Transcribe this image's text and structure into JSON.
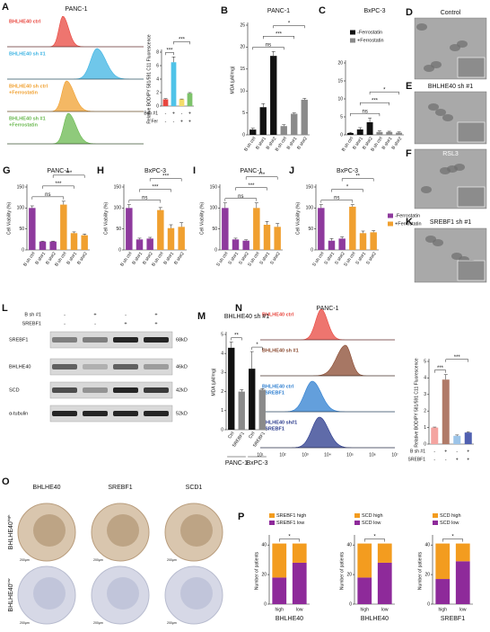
{
  "chart_data": [
    {
      "type": "bar",
      "ylabel": "Relative BODIPY 581/591 C11 Fluorescence",
      "ylim": [
        0,
        8
      ],
      "yticks": [
        0,
        2,
        4,
        6,
        8
      ],
      "values": [
        1,
        6.5,
        1,
        1.9
      ],
      "errors": [
        0.1,
        0.8,
        0.05,
        0.1
      ],
      "colors": [
        "#e8473f",
        "#4fc3e8",
        "#f4dc6a",
        "#7dc36b"
      ],
      "rows": [
        {
          "label": "Bsh #1",
          "marks": [
            "-",
            "+",
            "-",
            "+"
          ]
        },
        {
          "label": "Fer",
          "marks": [
            "-",
            "-",
            "+",
            "+"
          ]
        }
      ],
      "annotations": [
        {
          "text": "***",
          "from": 0,
          "to": 1
        },
        {
          "text": "***",
          "from": 1,
          "to": 3
        }
      ]
    },
    {
      "type": "bar",
      "panel": "B",
      "title": "PANC-1",
      "ylabel": "MDA (μM/mg)",
      "ylim": [
        0,
        25
      ],
      "yticks": [
        0,
        5,
        10,
        15,
        20,
        25
      ],
      "categories": [
        "B sh ctrl",
        "B sh#1",
        "B sh#2",
        "B sh ctrl",
        "B sh#1",
        "B sh#2"
      ],
      "values": [
        1.2,
        6.3,
        18,
        2,
        4.8,
        8
      ],
      "errors": [
        0.3,
        0.8,
        1,
        0.3,
        0.2,
        0.3
      ],
      "colors": [
        "#111111",
        "#111111",
        "#111111",
        "#8a8a8a",
        "#8a8a8a",
        "#8a8a8a"
      ],
      "annotations": [
        {
          "text": "ns",
          "from": 0,
          "to": 3
        },
        {
          "text": "***",
          "from": 1,
          "to": 4
        },
        {
          "text": "*",
          "from": 2,
          "to": 5
        }
      ]
    },
    {
      "type": "bar",
      "panel": "C",
      "title": "BxPC-3",
      "ylim": [
        0,
        20
      ],
      "yticks": [
        0,
        5,
        10,
        15,
        20
      ],
      "categories": [
        "B sh ctrl",
        "B sh#1",
        "B sh#2",
        "B sh ctrl",
        "B sh#1",
        "B sh#2"
      ],
      "values": [
        0.5,
        1.5,
        3.5,
        0.8,
        0.8,
        0.6
      ],
      "errors": [
        0.2,
        0.5,
        1.2,
        0.3,
        0.2,
        0.2
      ],
      "colors": [
        "#111111",
        "#111111",
        "#111111",
        "#8a8a8a",
        "#8a8a8a",
        "#8a8a8a"
      ],
      "legend": [
        {
          "name": "-Ferrostatin",
          "color": "#111111"
        },
        {
          "name": "+Ferrostatin",
          "color": "#8a8a8a"
        }
      ],
      "annotations": [
        {
          "text": "ns",
          "from": 0,
          "to": 3
        },
        {
          "text": "***",
          "from": 1,
          "to": 4
        },
        {
          "text": "*",
          "from": 2,
          "to": 5
        }
      ]
    },
    {
      "type": "bar",
      "panel": "G",
      "title": "PANC-1",
      "ylabel": "Cell Viability (%)",
      "ylim": [
        0,
        150
      ],
      "yticks": [
        0,
        50,
        100,
        150
      ],
      "categories": [
        "B sh ctrl",
        "B sh#1",
        "B sh#2",
        "B sh ctrl",
        "B sh#1",
        "B sh#2"
      ],
      "values": [
        100,
        20,
        20,
        108,
        40,
        35
      ],
      "errors": [
        5,
        1,
        1,
        8,
        3,
        3
      ],
      "colors": [
        "#8e3a9d",
        "#8e3a9d",
        "#8e3a9d",
        "#f0a030",
        "#f0a030",
        "#f0a030"
      ],
      "annotations": [
        {
          "text": "ns",
          "from": 0,
          "to": 3
        },
        {
          "text": "***",
          "from": 1,
          "to": 4
        },
        {
          "text": "***",
          "from": 2,
          "to": 5
        }
      ]
    },
    {
      "type": "bar",
      "panel": "H",
      "title": "BxPC-3",
      "ylabel": "Cell Viability (%)",
      "ylim": [
        0,
        150
      ],
      "yticks": [
        0,
        50,
        100,
        150
      ],
      "categories": [
        "B sh ctrl",
        "B sh#1",
        "B sh#2",
        "B sh ctrl",
        "B sh#1",
        "B sh#2"
      ],
      "values": [
        100,
        25,
        27,
        95,
        52,
        55
      ],
      "errors": [
        8,
        3,
        3,
        6,
        8,
        10
      ],
      "colors": [
        "#8e3a9d",
        "#8e3a9d",
        "#8e3a9d",
        "#f0a030",
        "#f0a030",
        "#f0a030"
      ],
      "annotations": [
        {
          "text": "ns",
          "from": 0,
          "to": 3
        },
        {
          "text": "***",
          "from": 1,
          "to": 4
        },
        {
          "text": "***",
          "from": 2,
          "to": 5
        }
      ]
    },
    {
      "type": "bar",
      "panel": "I",
      "title": "PANC-1",
      "ylabel": "Cell Viability (%)",
      "ylim": [
        0,
        150
      ],
      "yticks": [
        0,
        50,
        100,
        150
      ],
      "categories": [
        "S sh ctrl",
        "S sh#1",
        "S sh#2",
        "S sh ctrl",
        "S sh#1",
        "S sh#2"
      ],
      "values": [
        100,
        25,
        22,
        100,
        60,
        55
      ],
      "errors": [
        12,
        3,
        2,
        12,
        8,
        8
      ],
      "colors": [
        "#8e3a9d",
        "#8e3a9d",
        "#8e3a9d",
        "#f0a030",
        "#f0a030",
        "#f0a030"
      ],
      "annotations": [
        {
          "text": "ns",
          "from": 0,
          "to": 3
        },
        {
          "text": "***",
          "from": 1,
          "to": 4
        },
        {
          "text": "***",
          "from": 2,
          "to": 5
        }
      ]
    },
    {
      "type": "bar",
      "panel": "J",
      "title": "BxPC-3",
      "ylabel": "Cell Viability (%)",
      "ylim": [
        0,
        150
      ],
      "yticks": [
        0,
        50,
        100,
        150
      ],
      "categories": [
        "S sh ctrl",
        "S sh#1",
        "S sh#2",
        "S sh ctrl",
        "S sh#1",
        "S sh#2"
      ],
      "values": [
        100,
        22,
        27,
        103,
        40,
        42
      ],
      "errors": [
        8,
        5,
        4,
        5,
        5,
        4
      ],
      "colors": [
        "#8e3a9d",
        "#8e3a9d",
        "#8e3a9d",
        "#f0a030",
        "#f0a030",
        "#f0a030"
      ],
      "legend": [
        {
          "name": "-Ferrostatin",
          "color": "#8e3a9d"
        },
        {
          "name": "+Ferrostatin",
          "color": "#f0a030"
        }
      ],
      "annotations": [
        {
          "text": "ns",
          "from": 0,
          "to": 3
        },
        {
          "text": "*",
          "from": 1,
          "to": 4
        },
        {
          "text": "**",
          "from": 2,
          "to": 5
        }
      ]
    },
    {
      "type": "bar",
      "panel": "M",
      "title": "BHLHE40 sh #1",
      "ylabel": "MDA (μM/mg)",
      "ylim": [
        0,
        5
      ],
      "yticks": [
        0,
        1,
        2,
        3,
        4,
        5
      ],
      "categories": [
        "Ctrl",
        "SREBF1",
        "Ctrl",
        "SREBF1"
      ],
      "values": [
        4.3,
        2.0,
        3.2,
        2.1
      ],
      "errors": [
        0.3,
        0.1,
        0.9,
        0.05
      ],
      "colors": [
        "#111111",
        "#8a8a8a",
        "#111111",
        "#8a8a8a"
      ],
      "groups": [
        {
          "label": "PANC-1",
          "from": 0,
          "to": 1
        },
        {
          "label": "BxPC-3",
          "from": 2,
          "to": 3
        }
      ],
      "annotations": [
        {
          "text": "**",
          "from": 0,
          "to": 1
        },
        {
          "text": "*",
          "from": 2,
          "to": 3
        }
      ]
    },
    {
      "type": "bar",
      "ylabel": "Relative BODIPY 581/591 C11 Fluorescence",
      "ylim": [
        0,
        5
      ],
      "yticks": [
        0,
        1,
        2,
        3,
        4,
        5
      ],
      "values": [
        1,
        3.9,
        0.5,
        0.7
      ],
      "errors": [
        0.03,
        0.3,
        0.05,
        0.05
      ],
      "colors": [
        "#f4a4a0",
        "#b07a68",
        "#9cc4e8",
        "#5060b0"
      ],
      "rows": [
        {
          "label": "B sh #1",
          "marks": [
            "-",
            "+",
            "-",
            "+"
          ]
        },
        {
          "label": "SREBF1",
          "marks": [
            "-",
            "-",
            "+",
            "+"
          ]
        }
      ],
      "annotations": [
        {
          "text": "***",
          "from": 0,
          "to": 1
        },
        {
          "text": "***",
          "from": 1,
          "to": 3
        }
      ]
    },
    {
      "type": "stacked_bar",
      "panel": "P",
      "ylabel": "Number of patients",
      "xlabel": "BHLHE40",
      "ylim": [
        0,
        45
      ],
      "yticks": [
        0,
        20,
        40
      ],
      "categories": [
        "high",
        "low"
      ],
      "series": [
        {
          "name": "SREBF1 low",
          "color": "#8e2a9a",
          "values": [
            18,
            28
          ]
        },
        {
          "name": "SREBF1 high",
          "color": "#f39c1f",
          "values": [
            23,
            13
          ]
        }
      ],
      "annotations": [
        {
          "text": "*",
          "from": 0,
          "to": 1
        }
      ]
    },
    {
      "type": "stacked_bar",
      "ylabel": "Number of patients",
      "xlabel": "BHLHE40",
      "ylim": [
        0,
        45
      ],
      "yticks": [
        0,
        20,
        40
      ],
      "categories": [
        "high",
        "low"
      ],
      "series": [
        {
          "name": "SCD low",
          "color": "#8e2a9a",
          "values": [
            18,
            28
          ]
        },
        {
          "name": "SCD high",
          "color": "#f39c1f",
          "values": [
            23,
            13
          ]
        }
      ],
      "annotations": [
        {
          "text": "*",
          "from": 0,
          "to": 1
        }
      ]
    },
    {
      "type": "stacked_bar",
      "ylabel": "Number of patients",
      "xlabel": "SREBF1",
      "ylim": [
        0,
        45
      ],
      "yticks": [
        0,
        20,
        40
      ],
      "categories": [
        "high",
        "low"
      ],
      "series": [
        {
          "name": "SCD low",
          "color": "#8e2a9a",
          "values": [
            17,
            29
          ]
        },
        {
          "name": "SCD high",
          "color": "#f39c1f",
          "values": [
            24,
            12
          ]
        }
      ],
      "annotations": [
        {
          "text": "*",
          "from": 0,
          "to": 1
        }
      ]
    }
  ],
  "flow_a": {
    "letter": "A",
    "title": "PANC-1",
    "labels": [
      [
        "BHLHE40 ctrl"
      ],
      [
        "BHLHE40 sh #1"
      ],
      [
        "BHLHE40 sh ctrl",
        "+Ferrostatin"
      ],
      [
        "BHLHE40 sh #1",
        "+Ferrostatin"
      ]
    ]
  },
  "flow_n": {
    "letter": "N",
    "title": "PANC-1",
    "labels": [
      [
        "BHLHE40 ctrl"
      ],
      [
        "BHLHE40 sh #1"
      ],
      [
        "BHLHE40 ctrl",
        "+SREBF1"
      ],
      [
        "BHLHE40 sh#1",
        "+SREBF1"
      ]
    ],
    "xticks": [
      "10¹",
      "10²",
      "10³",
      "10⁴",
      "10⁵",
      "10⁶",
      "10⁷"
    ]
  },
  "micrographs": [
    {
      "letter": "D",
      "label": "Control"
    },
    {
      "letter": "E",
      "label": "BHLHE40 sh #1"
    },
    {
      "letter": "F",
      "label": "RSL3"
    },
    {
      "letter": "K",
      "label": "SREBF1 sh #1"
    }
  ],
  "blot": {
    "letter": "L",
    "rows": [
      {
        "label": "B sh #1",
        "marks": [
          "-",
          "+",
          "-",
          "+"
        ]
      },
      {
        "label": "SREBF1",
        "marks": [
          "-",
          "-",
          "+",
          "+"
        ]
      }
    ],
    "bands": [
      {
        "label": "SREBF1",
        "size": "68kD"
      },
      {
        "label": "BHLHE40",
        "size": "46kD"
      },
      {
        "label": "SCD",
        "size": "42kD"
      },
      {
        "label": "α-tubulin",
        "size": "52kD"
      }
    ]
  },
  "ihc": {
    "letter": "O",
    "columns": [
      "BHLHE40",
      "SREBF1",
      "SCD1"
    ],
    "rows": [
      {
        "gene": "BHLHE40",
        "level": "high"
      },
      {
        "gene": "BHLHE40",
        "level": "low"
      }
    ],
    "scale": "200μm"
  }
}
